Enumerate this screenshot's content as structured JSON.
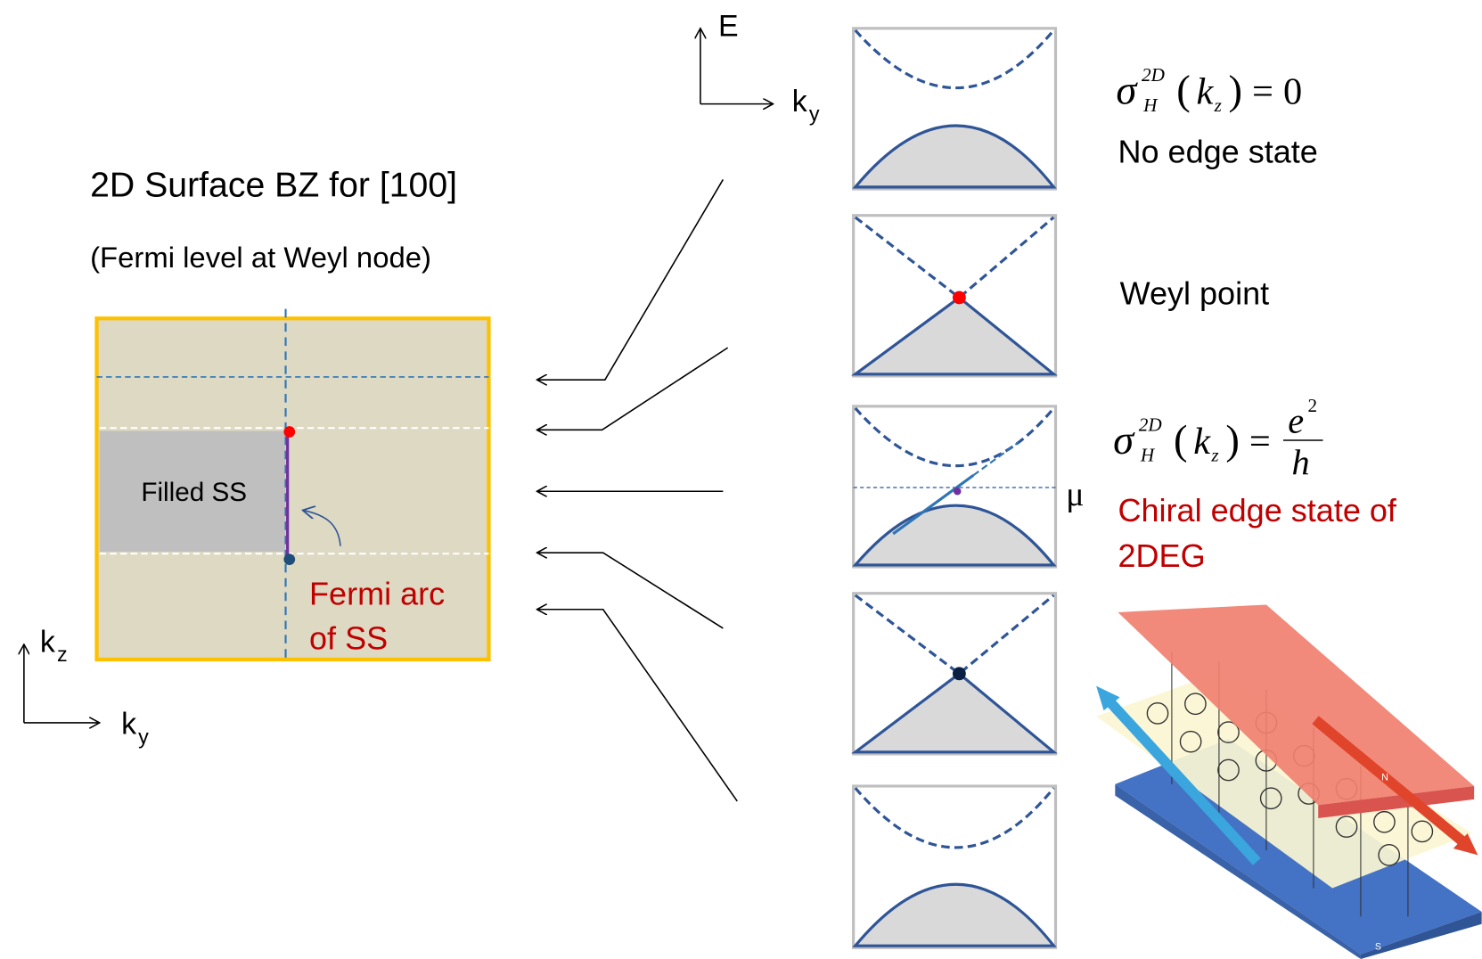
{
  "surface_panel": {
    "title": "2D Surface BZ for [100]",
    "subtitle": "(Fermi level at Weyl node)",
    "filled_label": "Filled SS",
    "arc_label": [
      "Fermi arc",
      "of SS"
    ],
    "axis_vertical": {
      "symbol": "k",
      "subscript": "z"
    },
    "axis_horizontal": {
      "symbol": "k",
      "subscript": "y"
    }
  },
  "band_axes": {
    "vertical": "E",
    "horizontal": {
      "symbol": "k",
      "subscript": "y"
    }
  },
  "chemical_potential": "μ",
  "formula_gapped": {
    "symbol": "σ",
    "superscript": "2D",
    "subscript": "H",
    "open": "(",
    "argument": "k",
    "argument_subscript": "z",
    "close": ")",
    "equals": "=",
    "rhs": "0"
  },
  "no_edge_state": "No edge state",
  "weyl_point": "Weyl point",
  "formula_chiral": {
    "symbol": "σ",
    "superscript": "2D",
    "subscript": "H",
    "open": "(",
    "argument": "k",
    "argument_subscript": "z",
    "close": ")",
    "equals": "=",
    "numerator": "e",
    "numerator_superscript": "2",
    "denominator": "h"
  },
  "chiral_label": [
    "Chiral edge state of",
    "2DEG"
  ],
  "magnet_labels": {
    "north": "N",
    "south": "S"
  }
}
